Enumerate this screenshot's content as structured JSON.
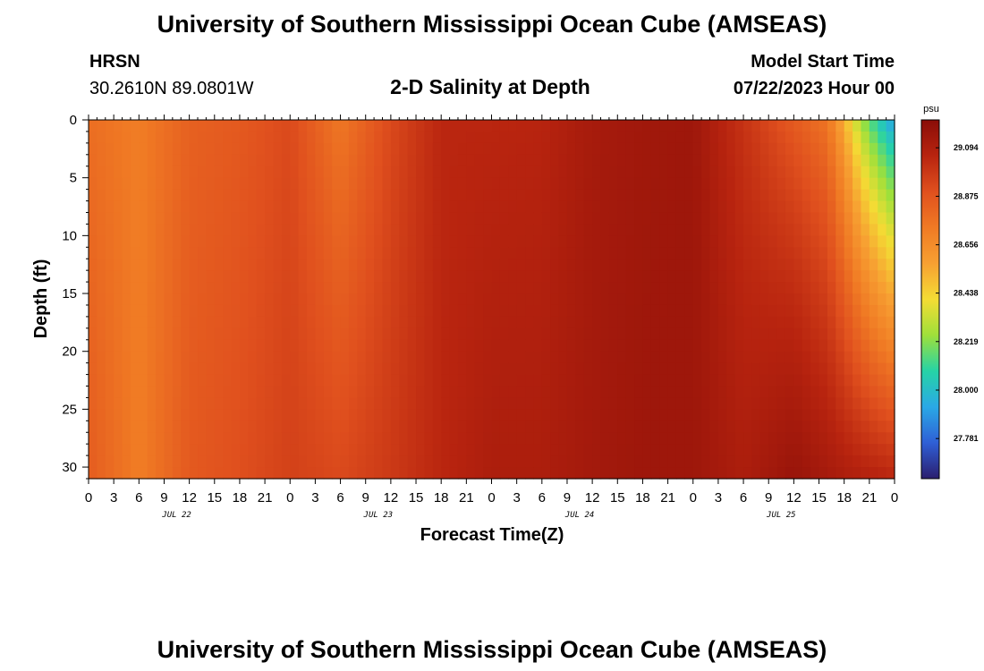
{
  "header": {
    "title": "University of Southern Mississippi Ocean Cube (AMSEAS)",
    "station": "HRSN",
    "coords": "30.2610N  89.0801W",
    "subtitle": "2-D Salinity at Depth",
    "model_label": "Model Start Time",
    "model_time": "07/22/2023 Hour 00"
  },
  "footer": {
    "title": "University of Southern Mississippi Ocean Cube (AMSEAS)"
  },
  "chart_data": {
    "type": "heatmap",
    "xlabel": "Forecast Time(Z)",
    "ylabel": "Depth (ft)",
    "x_hours_range": [
      0,
      96
    ],
    "x_tick_labels": [
      "0",
      "3",
      "6",
      "9",
      "12",
      "15",
      "18",
      "21",
      "0",
      "3",
      "6",
      "9",
      "12",
      "15",
      "18",
      "21",
      "0",
      "3",
      "6",
      "9",
      "12",
      "15",
      "18",
      "21",
      "0",
      "3",
      "6",
      "9",
      "12",
      "15",
      "18",
      "21",
      "0"
    ],
    "day_labels": [
      "JUL 22",
      "JUL 23",
      "JUL 24",
      "JUL 25"
    ],
    "y_ticks": [
      0,
      5,
      10,
      15,
      20,
      25,
      30
    ],
    "y_tick_labels": [
      "0",
      "5",
      "10",
      "15",
      "20",
      "25",
      "30"
    ],
    "ylim": [
      0,
      31
    ],
    "y_inverted": true,
    "colorbar": {
      "unit": "psu",
      "min": 27.6,
      "max": 29.22,
      "ticks": [
        29.094,
        28.875,
        28.656,
        28.438,
        28.219,
        28.0,
        27.781
      ],
      "tick_labels": [
        "29.094",
        "28.875",
        "28.656",
        "28.438",
        "28.219",
        "28.000",
        "27.781"
      ],
      "colors": [
        "#2b1e6e",
        "#2f5fd6",
        "#2aa9e6",
        "#26d3a6",
        "#9fe03a",
        "#f4dc34",
        "#f7a032",
        "#f07a24",
        "#e0501e",
        "#b8240f",
        "#8a0d08"
      ]
    },
    "surface_salinity_by_hour": [
      [
        0,
        28.78
      ],
      [
        6,
        28.72
      ],
      [
        12,
        28.83
      ],
      [
        18,
        28.86
      ],
      [
        24,
        28.92
      ],
      [
        30,
        28.74
      ],
      [
        36,
        28.92
      ],
      [
        42,
        29.05
      ],
      [
        48,
        29.05
      ],
      [
        54,
        29.06
      ],
      [
        60,
        29.12
      ],
      [
        66,
        29.14
      ],
      [
        72,
        29.15
      ],
      [
        78,
        29.0
      ],
      [
        84,
        28.85
      ],
      [
        88,
        28.75
      ],
      [
        90,
        28.52
      ],
      [
        92,
        28.25
      ],
      [
        94,
        28.05
      ],
      [
        96,
        27.88
      ]
    ],
    "bottom_salinity_by_hour": [
      [
        0,
        28.85
      ],
      [
        6,
        28.72
      ],
      [
        12,
        28.86
      ],
      [
        18,
        28.9
      ],
      [
        24,
        28.95
      ],
      [
        30,
        28.92
      ],
      [
        36,
        28.98
      ],
      [
        42,
        29.05
      ],
      [
        48,
        29.1
      ],
      [
        54,
        29.1
      ],
      [
        60,
        29.13
      ],
      [
        66,
        29.15
      ],
      [
        72,
        29.15
      ],
      [
        78,
        29.1
      ],
      [
        84,
        29.17
      ],
      [
        90,
        29.1
      ],
      [
        96,
        29.05
      ]
    ]
  }
}
